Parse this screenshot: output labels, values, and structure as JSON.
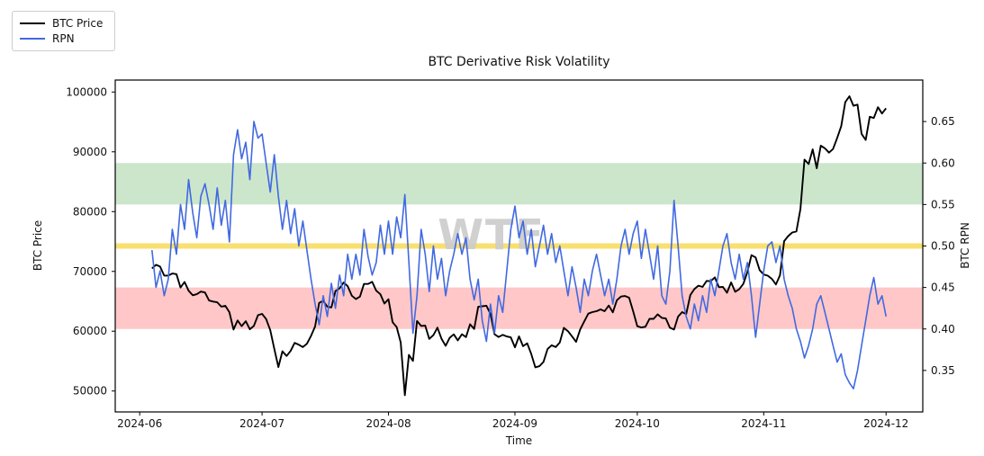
{
  "watermark": {
    "text": "WTF",
    "color": "#cccccc"
  },
  "chart_data": {
    "type": "line",
    "title": "BTC Derivative Risk Volatility",
    "xlabel": "Time",
    "ylabel_left": "BTC Price",
    "ylabel_right": "BTC RPN",
    "x_start_date": "2024-06-04",
    "x_frequency": "daily",
    "grid": false,
    "legend_position": "upper-left-outside",
    "x_ticks": [
      {
        "label": "2024-06",
        "day": -3
      },
      {
        "label": "2024-07",
        "day": 27
      },
      {
        "label": "2024-08",
        "day": 58
      },
      {
        "label": "2024-09",
        "day": 89
      },
      {
        "label": "2024-10",
        "day": 119
      },
      {
        "label": "2024-11",
        "day": 150
      },
      {
        "label": "2024-12",
        "day": 180
      }
    ],
    "y_ticks_left": [
      50000,
      60000,
      70000,
      80000,
      90000,
      100000
    ],
    "y_ticks_right": [
      0.35,
      0.4,
      0.45,
      0.5,
      0.55,
      0.6,
      0.65
    ],
    "ylim_left": [
      46500,
      102000
    ],
    "ylim_right": [
      0.3,
      0.7
    ],
    "bands": [
      {
        "name": "green-zone",
        "axis": "right",
        "from": 0.55,
        "to": 0.6,
        "color": "rgba(0,128,0,0.20)"
      },
      {
        "name": "red-zone",
        "axis": "right",
        "from": 0.4,
        "to": 0.45,
        "color": "rgba(255,0,0,0.22)"
      }
    ],
    "threshold_line": {
      "name": "neutral-threshold",
      "axis": "right",
      "value": 0.5,
      "color": "#f8df6f",
      "width": 6
    },
    "series": [
      {
        "name": "BTC Price",
        "axis": "left",
        "color": "#000000",
        "values": [
          70500,
          71100,
          70800,
          69300,
          69300,
          69650,
          69540,
          67300,
          68240,
          66770,
          66010,
          66190,
          66630,
          66480,
          65140,
          64960,
          64830,
          64120,
          64250,
          63180,
          60270,
          61790,
          60850,
          61680,
          60320,
          60890,
          62680,
          62900,
          62030,
          60170,
          57040,
          54000,
          56640,
          55850,
          56700,
          58050,
          57740,
          57340,
          57900,
          59230,
          60790,
          64730,
          65090,
          64100,
          63980,
          66710,
          67160,
          68150,
          67530,
          65930,
          65370,
          65780,
          67910,
          67900,
          68250,
          66780,
          66190,
          64620,
          65350,
          61500,
          60700,
          58120,
          49300,
          56030,
          55030,
          61710,
          60880,
          60940,
          58720,
          59350,
          60600,
          58740,
          57560,
          58890,
          59480,
          58460,
          59490,
          59010,
          61170,
          60380,
          64090,
          64170,
          64270,
          62880,
          59500,
          59030,
          59390,
          59120,
          58970,
          57300,
          59130,
          57490,
          57970,
          56180,
          53960,
          54160,
          54870,
          57020,
          57650,
          57340,
          58130,
          60570,
          60000,
          59130,
          58220,
          60310,
          61650,
          62940,
          63200,
          63350,
          63650,
          63340,
          64300,
          63150,
          65180,
          65790,
          65890,
          65600,
          63330,
          60840,
          60630,
          60750,
          62080,
          62060,
          62820,
          62230,
          62130,
          60580,
          60280,
          62440,
          63190,
          62850,
          66050,
          67040,
          67610,
          67400,
          68420,
          68360,
          69000,
          67360,
          67400,
          66430,
          68160,
          66600,
          67010,
          67920,
          69910,
          72720,
          72340,
          70215,
          69480,
          69290,
          68740,
          67810,
          69360,
          75060,
          75900,
          76510,
          76680,
          80430,
          88700,
          87955,
          90400,
          87250,
          91030,
          90580,
          89855,
          90460,
          92310,
          94290,
          98300,
          99300,
          97700,
          97900,
          93010,
          91985,
          95865,
          95650,
          97460,
          96410,
          97280
        ]
      },
      {
        "name": "RPN",
        "axis": "right",
        "color": "#4169e1",
        "values": [
          0.495,
          0.45,
          0.47,
          0.44,
          0.46,
          0.52,
          0.49,
          0.55,
          0.52,
          0.58,
          0.54,
          0.51,
          0.56,
          0.575,
          0.55,
          0.52,
          0.57,
          0.525,
          0.555,
          0.505,
          0.61,
          0.64,
          0.605,
          0.625,
          0.58,
          0.65,
          0.63,
          0.635,
          0.6,
          0.565,
          0.61,
          0.56,
          0.52,
          0.555,
          0.515,
          0.545,
          0.5,
          0.53,
          0.495,
          0.46,
          0.43,
          0.405,
          0.44,
          0.415,
          0.455,
          0.425,
          0.465,
          0.44,
          0.49,
          0.46,
          0.49,
          0.465,
          0.52,
          0.487,
          0.465,
          0.48,
          0.525,
          0.49,
          0.53,
          0.49,
          0.535,
          0.51,
          0.562,
          0.48,
          0.395,
          0.44,
          0.52,
          0.49,
          0.445,
          0.5,
          0.46,
          0.485,
          0.44,
          0.47,
          0.49,
          0.515,
          0.49,
          0.51,
          0.46,
          0.435,
          0.46,
          0.41,
          0.385,
          0.43,
          0.395,
          0.44,
          0.42,
          0.47,
          0.52,
          0.548,
          0.51,
          0.53,
          0.49,
          0.52,
          0.475,
          0.5,
          0.525,
          0.49,
          0.515,
          0.48,
          0.5,
          0.47,
          0.44,
          0.475,
          0.45,
          0.42,
          0.46,
          0.44,
          0.47,
          0.49,
          0.465,
          0.44,
          0.46,
          0.43,
          0.46,
          0.5,
          0.52,
          0.49,
          0.515,
          0.53,
          0.485,
          0.52,
          0.49,
          0.46,
          0.5,
          0.44,
          0.43,
          0.47,
          0.555,
          0.5,
          0.44,
          0.415,
          0.4,
          0.43,
          0.41,
          0.44,
          0.42,
          0.46,
          0.44,
          0.47,
          0.5,
          0.515,
          0.48,
          0.46,
          0.49,
          0.46,
          0.48,
          0.44,
          0.39,
          0.43,
          0.47,
          0.5,
          0.505,
          0.48,
          0.5,
          0.46,
          0.44,
          0.425,
          0.4,
          0.385,
          0.365,
          0.38,
          0.4,
          0.43,
          0.44,
          0.42,
          0.4,
          0.38,
          0.36,
          0.37,
          0.345,
          0.335,
          0.328,
          0.35,
          0.38,
          0.41,
          0.44,
          0.462,
          0.43,
          0.44,
          0.415
        ]
      }
    ]
  }
}
